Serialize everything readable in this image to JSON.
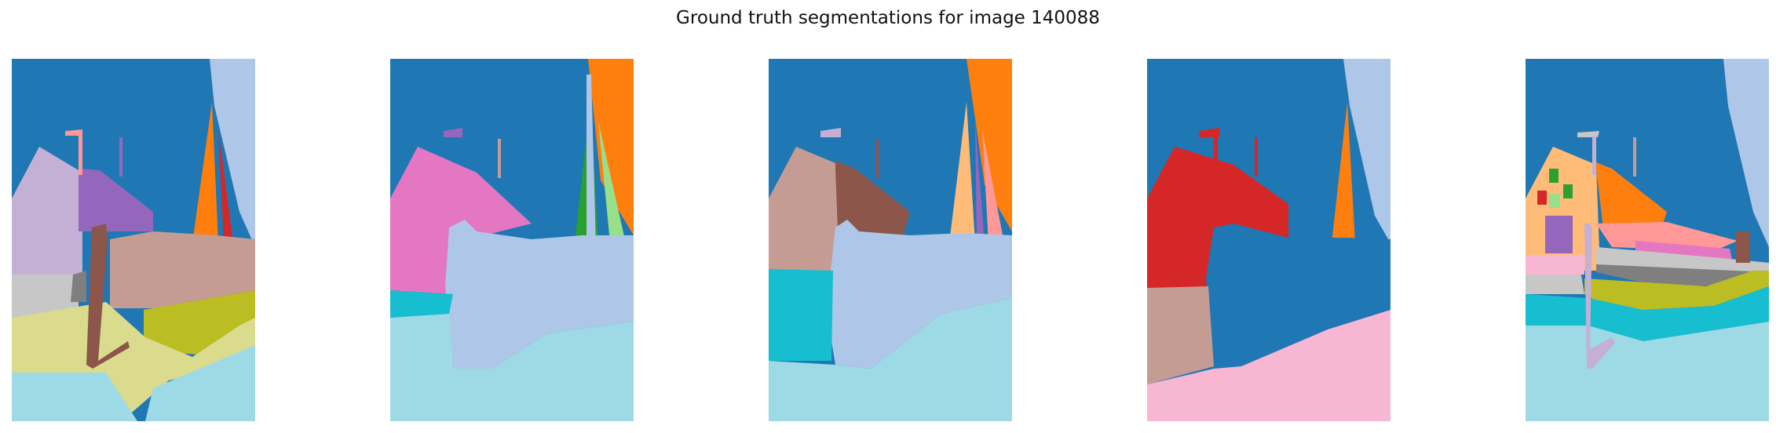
{
  "figure": {
    "title": "Ground truth segmentations for image 140088"
  },
  "palette": {
    "sky_blue": "#1f77b4",
    "pale_blue": "#aec7e8",
    "orange": "#ff7f0e",
    "light_orange": "#ffbb78",
    "green": "#2ca02c",
    "light_green": "#98df8a",
    "red": "#d62728",
    "light_red": "#ff9896",
    "purple": "#9467bd",
    "lavender": "#c5b0d5",
    "brown": "#8c564b",
    "tan": "#c49c94",
    "pink": "#e377c2",
    "light_pink": "#f7b6d2",
    "gray": "#7f7f7f",
    "light_gray": "#c7c7c7",
    "olive": "#bcbd22",
    "khaki": "#dbdb8d",
    "cyan": "#17becf",
    "light_cyan": "#9edae5"
  },
  "panels": [
    {
      "index": 1
    },
    {
      "index": 2
    },
    {
      "index": 3
    },
    {
      "index": 4
    },
    {
      "index": 5
    }
  ]
}
